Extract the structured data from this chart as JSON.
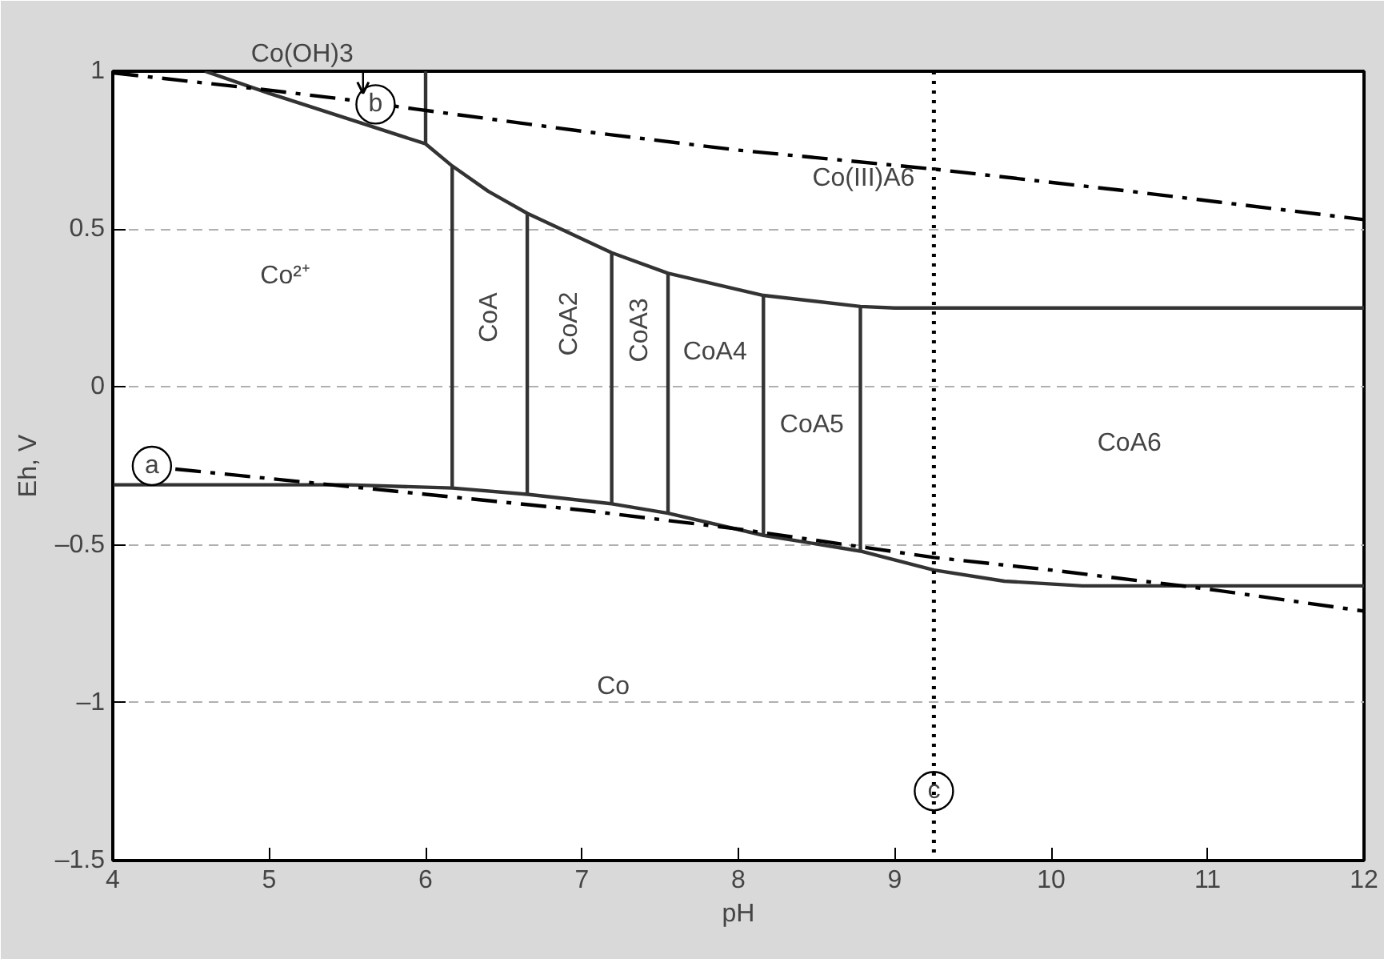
{
  "chart_data": {
    "type": "line",
    "xlabel": "pH",
    "ylabel": "Eh, V",
    "xlim": [
      4,
      12
    ],
    "xticks": [
      4,
      5,
      6,
      7,
      8,
      9,
      10,
      11,
      12
    ],
    "ylim": [
      -1.5,
      1
    ],
    "yticks": [
      {
        "value": -1.5,
        "label": "–1.5"
      },
      {
        "value": -1,
        "label": "–1"
      },
      {
        "value": -0.5,
        "label": "–0.5"
      },
      0,
      0.5,
      1
    ],
    "grid": "y",
    "marker": "none",
    "series": [
      {
        "color": "#333333",
        "line_style": "solid",
        "x": [
          4.59,
          5.0,
          5.5,
          6.0,
          6.17,
          6.4,
          6.65,
          7.19,
          7.55,
          8.16,
          8.78,
          9.0,
          12
        ],
        "values": [
          1.0,
          0.93,
          0.85,
          0.77,
          0.7,
          0.62,
          0.55,
          0.425,
          0.36,
          0.29,
          0.255,
          0.25,
          0.25
        ]
      },
      {
        "color": "#333333",
        "line_style": "solid",
        "x": [
          4,
          5.0,
          5.5,
          6.17,
          6.65,
          7.19,
          7.55,
          8.16,
          8.78,
          9.25,
          9.7,
          10.2,
          12
        ],
        "values": [
          -0.31,
          -0.31,
          -0.31,
          -0.32,
          -0.34,
          -0.37,
          -0.4,
          -0.47,
          -0.52,
          -0.58,
          -0.615,
          -0.63,
          -0.63
        ]
      },
      {
        "color": "#333333",
        "line_style": "solid",
        "x": [
          6.0,
          6.0
        ],
        "values": [
          1.0,
          0.77
        ]
      },
      {
        "color": "#333333",
        "line_style": "solid",
        "x": [
          6.17,
          6.17
        ],
        "values": [
          -0.32,
          0.7
        ]
      },
      {
        "color": "#333333",
        "line_style": "solid",
        "x": [
          6.65,
          6.65
        ],
        "values": [
          -0.34,
          0.55
        ]
      },
      {
        "color": "#333333",
        "line_style": "solid",
        "x": [
          7.19,
          7.19
        ],
        "values": [
          -0.37,
          0.425
        ]
      },
      {
        "color": "#333333",
        "line_style": "solid",
        "x": [
          7.55,
          7.55
        ],
        "values": [
          -0.4,
          0.36
        ]
      },
      {
        "color": "#333333",
        "line_style": "solid",
        "x": [
          8.16,
          8.16
        ],
        "values": [
          -0.47,
          0.29
        ]
      },
      {
        "color": "#333333",
        "line_style": "solid",
        "x": [
          8.78,
          8.78
        ],
        "values": [
          -0.52,
          0.255
        ]
      },
      {
        "color": "#000000",
        "line_style": "dashdot",
        "x": [
          4.4,
          5,
          6,
          7,
          8,
          9.25,
          10,
          11,
          12
        ],
        "values": [
          -0.26,
          -0.29,
          -0.34,
          -0.39,
          -0.45,
          -0.54,
          -0.58,
          -0.64,
          -0.71
        ]
      },
      {
        "color": "#000000",
        "line_style": "dashdot",
        "x": [
          4,
          5,
          5.5,
          5.94,
          7,
          8,
          9.25,
          10.5,
          12
        ],
        "values": [
          0.995,
          0.94,
          0.91,
          0.88,
          0.81,
          0.75,
          0.69,
          0.62,
          0.53
        ]
      }
    ],
    "ref_lines": [
      {
        "axis": "x",
        "value": 9.25,
        "line_style": "dotted",
        "color": "#000000"
      }
    ],
    "annotations": [
      {
        "text": "Co(OH)3",
        "x": 5.6,
        "y": 0.93
      },
      {
        "text": "a",
        "x": 4.25,
        "y": -0.25
      },
      {
        "text": "b",
        "x": 5.68,
        "y": 0.895
      },
      {
        "text": "c",
        "x": 9.25,
        "y": -1.28
      },
      "Co²⁺",
      "Co(III)A6",
      "CoA",
      "CoA2",
      "CoA3",
      "CoA4",
      "CoA5",
      "CoA6",
      "Co"
    ]
  }
}
